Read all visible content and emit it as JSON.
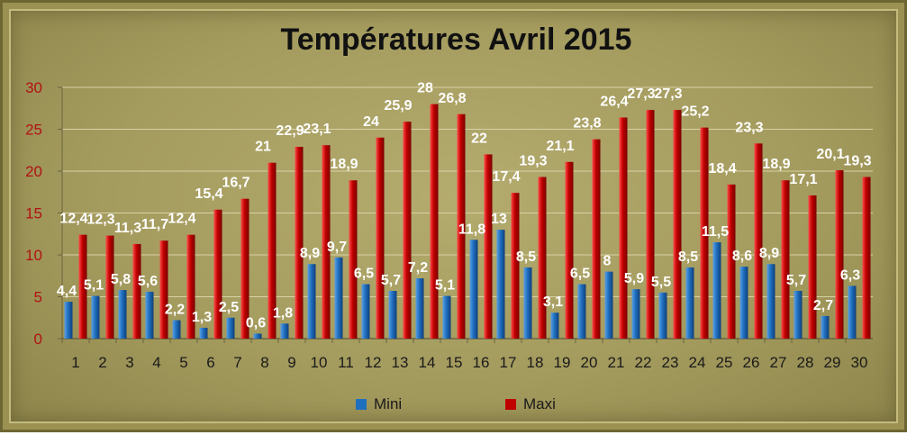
{
  "chart_data": {
    "type": "bar",
    "title": "Températures Avril 2015",
    "categories": [
      "1",
      "2",
      "3",
      "4",
      "5",
      "6",
      "7",
      "8",
      "9",
      "10",
      "11",
      "12",
      "13",
      "14",
      "15",
      "16",
      "17",
      "18",
      "19",
      "20",
      "21",
      "22",
      "23",
      "24",
      "25",
      "26",
      "27",
      "28",
      "29",
      "30"
    ],
    "series": [
      {
        "name": "Mini",
        "color": "#1f6fbf",
        "values": [
          4.4,
          5.1,
          5.8,
          5.6,
          2.2,
          1.3,
          2.5,
          0.6,
          1.8,
          8.9,
          9.7,
          6.5,
          5.7,
          7.2,
          5.1,
          11.8,
          13,
          8.5,
          3.1,
          6.5,
          8,
          5.9,
          5.5,
          8.5,
          11.5,
          8.6,
          8.9,
          5.7,
          2.7,
          6.3
        ],
        "labels": [
          "4,4",
          "5,1",
          "5,8",
          "5,6",
          "2,2",
          "1,3",
          "2,5",
          "0,6",
          "1,8",
          "8,9",
          "9,7",
          "6,5",
          "5,7",
          "7,2",
          "5,1",
          "11,8",
          "13",
          "8,5",
          "3,1",
          "6,5",
          "8",
          "5,9",
          "5,5",
          "8,5",
          "11,5",
          "8,6",
          "8,9",
          "5,7",
          "2,7",
          "6,3"
        ]
      },
      {
        "name": "Maxi",
        "color": "#c00000",
        "values": [
          12.4,
          12.3,
          11.3,
          11.7,
          12.4,
          15.4,
          16.7,
          21,
          22.9,
          23.1,
          18.9,
          24,
          25.9,
          28,
          26.8,
          22,
          17.4,
          19.3,
          21.1,
          23.8,
          26.4,
          27.3,
          27.3,
          25.2,
          18.4,
          23.3,
          18.9,
          17.1,
          20.1,
          19.3
        ],
        "labels": [
          "12,4",
          "12,3",
          "11,3",
          "11,7",
          "12,4",
          "15,4",
          "16,7",
          "21",
          "22,9",
          "23,1",
          "18,9",
          "24",
          "25,9",
          "28",
          "26,8",
          "22",
          "17,4",
          "19,3",
          "21,1",
          "23,8",
          "26,4",
          "27,3",
          "27,3",
          "25,2",
          "18,4",
          "23,3",
          "18,9",
          "17,1",
          "20,1",
          "19,3"
        ]
      }
    ],
    "xlabel": "",
    "ylabel": "",
    "ylim": [
      0,
      30
    ],
    "yticks": [
      "0",
      "5",
      "10",
      "15",
      "20",
      "25",
      "30"
    ],
    "grid": true,
    "legend": "bottom"
  }
}
